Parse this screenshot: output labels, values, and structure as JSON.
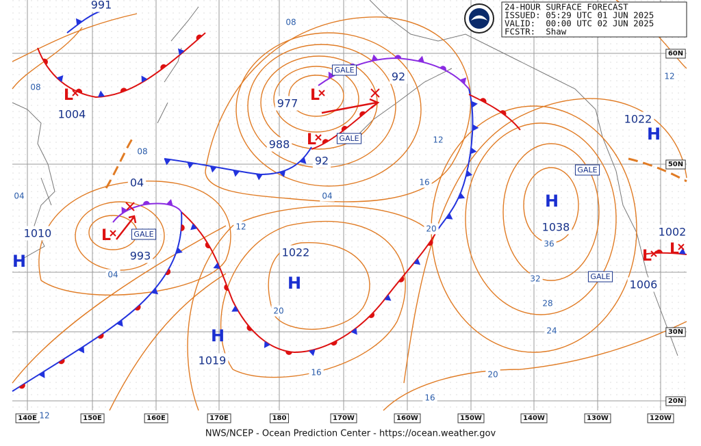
{
  "header": {
    "title": "24-HOUR SURFACE FORECAST",
    "issued": "ISSUED: 05:29 UTC 01 JUN 2025",
    "valid": "VALID:  00:00 UTC 02 JUN 2025",
    "forecaster": "FCSTR:  Shaw"
  },
  "longitude_labels": [
    "140E",
    "150E",
    "160E",
    "170E",
    "180",
    "170W",
    "160W",
    "150W",
    "140W",
    "130W",
    "120W"
  ],
  "latitude_labels": [
    "60N",
    "50N",
    "30N",
    "20N"
  ],
  "center_symbols": [
    "L",
    "L",
    "L",
    "L",
    "L",
    "L",
    "H",
    "H",
    "H",
    "H",
    "H"
  ],
  "pressure_labels": [
    "977",
    "988",
    "993",
    "1004",
    "991",
    "1010",
    "1022",
    "1019",
    "1038",
    "1022",
    "1002",
    "1006",
    "92",
    "04",
    "92"
  ],
  "isobar_labels": [
    "08",
    "08",
    "08",
    "12",
    "16",
    "20",
    "12",
    "04",
    "04",
    "04",
    "20",
    "36",
    "32",
    "28",
    "24",
    "20",
    "16",
    "16",
    "12",
    "12"
  ],
  "gale_labels": [
    "GALE",
    "GALE",
    "GALE",
    "GALE",
    "GALE"
  ],
  "footer": "NWS/NCEP - Ocean Prediction Center - https://ocean.weather.gov"
}
